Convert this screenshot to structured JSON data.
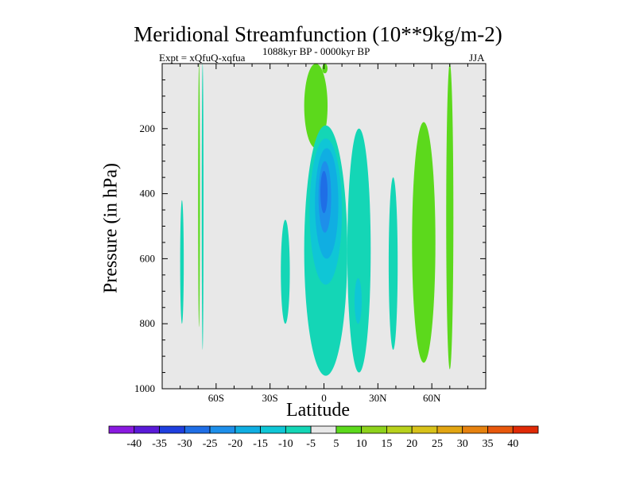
{
  "chart_data": {
    "type": "heatmap",
    "title": "Meridional Streamfunction (10**9kg/m-2)",
    "subtitle_left": "Expt = xQfuQ-xqfua",
    "subtitle_center": "1088kyr BP - 0000kyr BP",
    "subtitle_right": "JJA",
    "xlabel": "Latitude",
    "ylabel": "Pressure (in hPa)",
    "xlim": [
      -90,
      90
    ],
    "ylim": [
      1000,
      0
    ],
    "x_ticks": [
      {
        "value": -60,
        "label": "60S"
      },
      {
        "value": -30,
        "label": "30S"
      },
      {
        "value": 0,
        "label": "0"
      },
      {
        "value": 30,
        "label": "30N"
      },
      {
        "value": 60,
        "label": "60N"
      }
    ],
    "y_ticks": [
      {
        "value": 200,
        "label": "200"
      },
      {
        "value": 400,
        "label": "400"
      },
      {
        "value": 600,
        "label": "600"
      },
      {
        "value": 800,
        "label": "800"
      },
      {
        "value": 1000,
        "label": "1000"
      }
    ],
    "background_color": "#e8e8e8",
    "colorbar": {
      "levels": [
        -40,
        -35,
        -30,
        -25,
        -20,
        -15,
        -10,
        -5,
        5,
        10,
        15,
        20,
        25,
        30,
        35,
        40
      ],
      "labels": [
        "-40",
        "-35",
        "-30",
        "-25",
        "-20",
        "-15",
        "-10",
        "-5",
        "5",
        "10",
        "15",
        "20",
        "25",
        "30",
        "35",
        "40"
      ],
      "colors": [
        "#8a1ae0",
        "#5a1ad8",
        "#1f3fdf",
        "#1f6ee6",
        "#1e8fea",
        "#10aee2",
        "#0fc6d6",
        "#14d6b6",
        "#e8e8e8",
        "#5cd91c",
        "#8ed21c",
        "#b8d11c",
        "#d8c21a",
        "#e2a512",
        "#e6820f",
        "#e8580c",
        "#e02a06"
      ]
    },
    "regions": [
      {
        "name": "green-upper-equator",
        "level": "5 to 10",
        "color": "#5cd91c",
        "lat_range": [
          -11,
          2
        ],
        "p_range": [
          0,
          260
        ]
      },
      {
        "name": "green-upper-tip",
        "level": "5 to 10",
        "color": "#5cd91c",
        "lat_range": [
          -1,
          2
        ],
        "p_range": [
          0,
          30
        ]
      },
      {
        "name": "green-north-band",
        "level": "5 to 10",
        "color": "#5cd91c",
        "lat_range": [
          49,
          62
        ],
        "p_range": [
          180,
          920
        ]
      },
      {
        "name": "green-north-narrow",
        "level": "5 to 10",
        "color": "#5cd91c",
        "lat_range": [
          68,
          72
        ],
        "p_range": [
          0,
          940
        ]
      },
      {
        "name": "green-south-narrow",
        "level": "5 to 10",
        "color": "#5cd91c",
        "lat_range": [
          -70,
          -69
        ],
        "p_range": [
          0,
          810
        ]
      },
      {
        "name": "teal-main-cell",
        "level": "-10 to -5",
        "color": "#14d6b6",
        "lat_range": [
          -11,
          13
        ],
        "p_range": [
          190,
          960
        ]
      },
      {
        "name": "cyan-main-cell",
        "level": "-15 to -10",
        "color": "#0fc6d6",
        "lat_range": [
          -8,
          10
        ],
        "p_range": [
          230,
          680
        ]
      },
      {
        "name": "lightblue-main-cell",
        "level": "-20 to -15",
        "color": "#10aee2",
        "lat_range": [
          -5,
          8
        ],
        "p_range": [
          260,
          600
        ]
      },
      {
        "name": "mid-blue-main-cell",
        "level": "-25 to -20",
        "color": "#1e8fea",
        "lat_range": [
          -3,
          4
        ],
        "p_range": [
          300,
          520
        ]
      },
      {
        "name": "blue-core",
        "level": "-30 to -25",
        "color": "#1f6ee6",
        "lat_range": [
          -2,
          2
        ],
        "p_range": [
          330,
          460
        ]
      },
      {
        "name": "teal-secondary-cell",
        "level": "-10 to -5",
        "color": "#14d6b6",
        "lat_range": [
          13,
          26
        ],
        "p_range": [
          200,
          950
        ]
      },
      {
        "name": "cyan-secondary-core",
        "level": "-15 to -10",
        "color": "#0fc6d6",
        "lat_range": [
          17,
          21
        ],
        "p_range": [
          660,
          800
        ]
      },
      {
        "name": "teal-west-strip",
        "level": "-10 to -5",
        "color": "#14d6b6",
        "lat_range": [
          -24,
          -19
        ],
        "p_range": [
          480,
          800
        ]
      },
      {
        "name": "teal-northeast-strip",
        "level": "-10 to -5",
        "color": "#14d6b6",
        "lat_range": [
          36,
          41
        ],
        "p_range": [
          350,
          880
        ]
      },
      {
        "name": "teal-south-strip",
        "level": "-10 to -5",
        "color": "#14d6b6",
        "lat_range": [
          -80,
          -78
        ],
        "p_range": [
          420,
          800
        ]
      },
      {
        "name": "teal-south-strip-2",
        "level": "-10 to -5",
        "color": "#14d6b6",
        "lat_range": [
          -68,
          -67
        ],
        "p_range": [
          0,
          880
        ]
      }
    ]
  }
}
